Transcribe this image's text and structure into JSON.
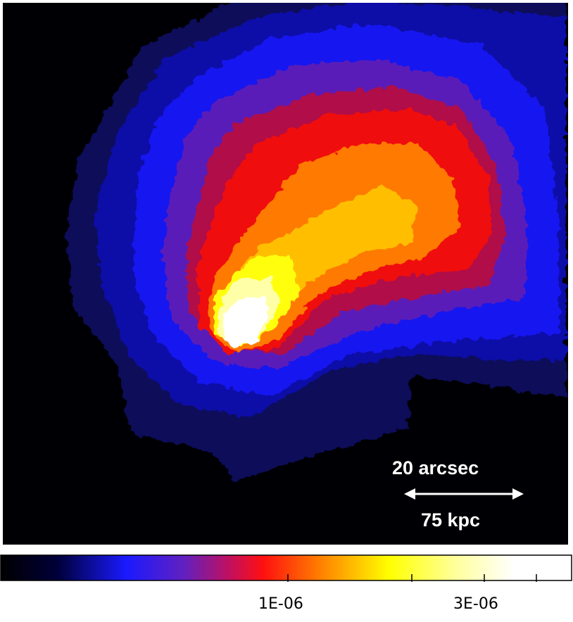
{
  "image": {
    "scale_bar": {
      "angular_label": "20 arcsec",
      "physical_label": "75 kpc",
      "color": "#ffffff"
    },
    "background_color": "#000004"
  },
  "colorbar": {
    "colormap": [
      "#000000",
      "#00003a",
      "#1a1aff",
      "#6020c0",
      "#c01060",
      "#ff1010",
      "#ff8000",
      "#ffff00",
      "#ffffa0",
      "#ffffff"
    ],
    "tick_labels": [
      "1E-06",
      "3E-06"
    ]
  }
}
